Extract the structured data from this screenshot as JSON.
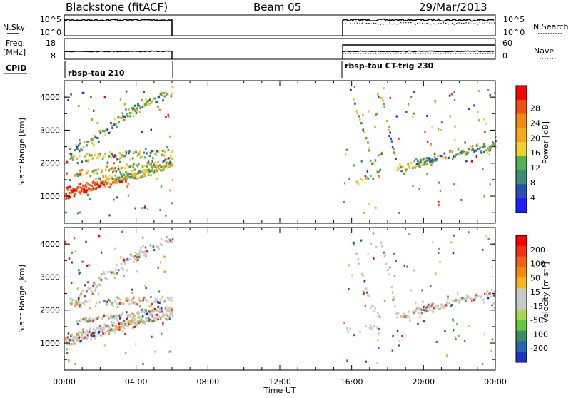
{
  "header": {
    "station": "Blackstone (fitACF)",
    "beam": "Beam 05",
    "date": "29/Mar/2013"
  },
  "strips": {
    "nsky": {
      "label": "N.Sky",
      "ticks": [
        "10^5",
        "10^0"
      ]
    },
    "nsearch": {
      "label": "N.Search",
      "ticks": [
        "10^5",
        "10^0"
      ]
    },
    "freq": {
      "label_line1": "Freq.",
      "label_line2": "[MHz]",
      "ticks": [
        "18",
        "8"
      ]
    },
    "nave": {
      "label": "Nave",
      "ticks": [
        "60",
        "0"
      ]
    },
    "cpid": {
      "label": "CPID",
      "segments": [
        {
          "name": "rbsp-tau 210",
          "start_hour": 0,
          "end_hour": 6
        },
        {
          "name": "rbsp-tau CT-trig 230",
          "start_hour": 15.5,
          "end_hour": 24
        }
      ]
    }
  },
  "chart_data": [
    {
      "type": "heatmap",
      "panel": "power",
      "ylabel": "Slant Range [km]",
      "ylim": [
        180,
        4500
      ],
      "yticks": [
        "1000",
        "2000",
        "3000",
        "4000"
      ],
      "colorbar_label": "Power [dB]",
      "colorbar_ticks": [
        "4",
        "8",
        "12",
        "16",
        "20",
        "24",
        "28"
      ],
      "colorbar_colors": [
        "#1e1eff",
        "#2850b4",
        "#3c8c78",
        "#50b450",
        "#f0d232",
        "#f5aa1e",
        "#f08c14",
        "#f05014",
        "#ff0000"
      ],
      "data_hours": [
        [
          0,
          6
        ],
        [
          15.5,
          24
        ]
      ]
    },
    {
      "type": "heatmap",
      "panel": "velocity",
      "ylabel": "Slant Range [km]",
      "ylim": [
        180,
        4500
      ],
      "yticks": [
        "1000",
        "2000",
        "3000",
        "4000"
      ],
      "colorbar_label": "Velocity [m s⁻¹]",
      "colorbar_ticks": [
        "200",
        "100",
        "50",
        "15",
        "-15",
        "-50",
        "-100",
        "-200"
      ],
      "colorbar_colors": [
        "#1e32c8",
        "#2864b4",
        "#3c8c64",
        "#64c83c",
        "#a0dc50",
        "#c8c8c8",
        "#c8c8c8",
        "#f5b428",
        "#f08c14",
        "#f06414",
        "#f03214",
        "#ff0000"
      ],
      "data_hours": [
        [
          0,
          6
        ],
        [
          15.5,
          24
        ]
      ]
    }
  ],
  "xaxis": {
    "label": "Time UT",
    "ticks": [
      "00:00",
      "04:00",
      "08:00",
      "12:00",
      "16:00",
      "20:00",
      "00:00"
    ]
  }
}
